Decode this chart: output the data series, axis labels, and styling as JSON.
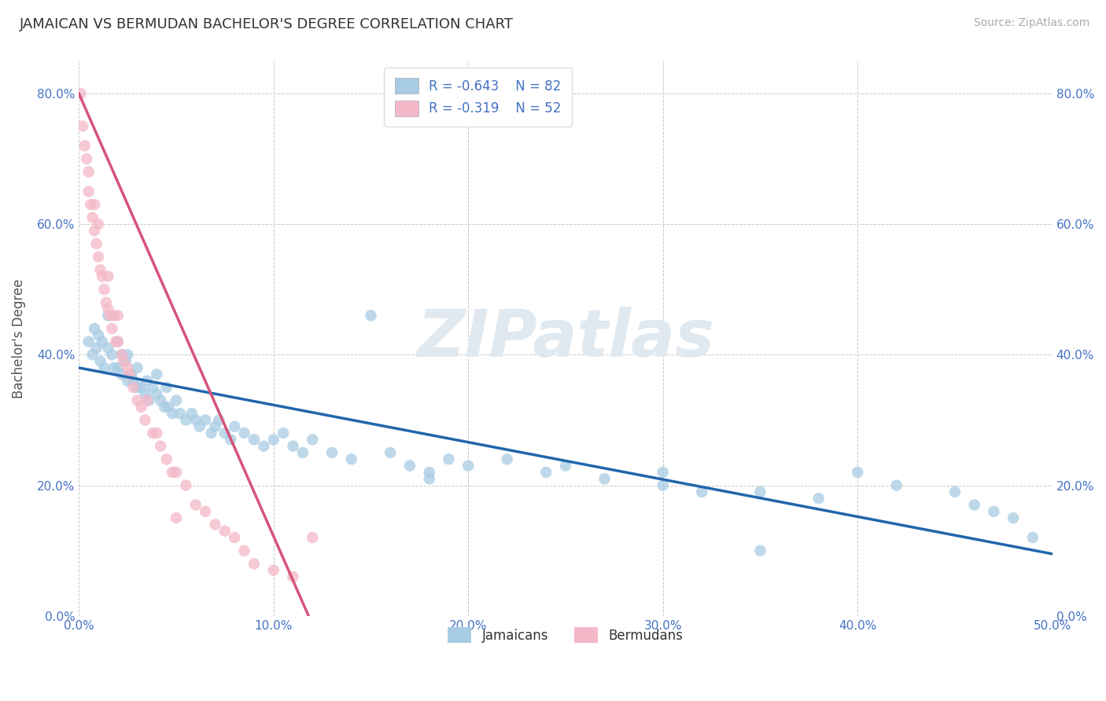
{
  "title": "JAMAICAN VS BERMUDAN BACHELOR'S DEGREE CORRELATION CHART",
  "source": "Source: ZipAtlas.com",
  "ylabel": "Bachelor's Degree",
  "xlim": [
    0.0,
    0.5
  ],
  "ylim": [
    0.0,
    0.85
  ],
  "xticks": [
    0.0,
    0.1,
    0.2,
    0.3,
    0.4,
    0.5
  ],
  "xtick_labels": [
    "0.0%",
    "10.0%",
    "20.0%",
    "30.0%",
    "40.0%",
    "50.0%"
  ],
  "yticks": [
    0.0,
    0.2,
    0.4,
    0.6,
    0.8
  ],
  "ytick_labels": [
    "0.0%",
    "20.0%",
    "40.0%",
    "60.0%",
    "80.0%"
  ],
  "legend_r_blue": "R = -0.643",
  "legend_n_blue": "N = 82",
  "legend_r_pink": "R = -0.319",
  "legend_n_pink": "N = 52",
  "blue_color": "#a8cce4",
  "blue_line_color": "#2166ac",
  "pink_color": "#f4b8c8",
  "pink_line_color": "#d6537a",
  "blue_scatter_x": [
    0.005,
    0.007,
    0.008,
    0.009,
    0.01,
    0.011,
    0.012,
    0.013,
    0.015,
    0.015,
    0.017,
    0.018,
    0.02,
    0.02,
    0.022,
    0.022,
    0.024,
    0.025,
    0.025,
    0.027,
    0.028,
    0.03,
    0.03,
    0.032,
    0.034,
    0.035,
    0.036,
    0.038,
    0.04,
    0.04,
    0.042,
    0.044,
    0.045,
    0.046,
    0.048,
    0.05,
    0.052,
    0.055,
    0.058,
    0.06,
    0.062,
    0.065,
    0.068,
    0.07,
    0.072,
    0.075,
    0.078,
    0.08,
    0.085,
    0.09,
    0.095,
    0.1,
    0.105,
    0.11,
    0.115,
    0.12,
    0.13,
    0.14,
    0.15,
    0.16,
    0.17,
    0.18,
    0.19,
    0.2,
    0.22,
    0.24,
    0.25,
    0.27,
    0.3,
    0.32,
    0.35,
    0.38,
    0.4,
    0.42,
    0.45,
    0.46,
    0.47,
    0.48,
    0.49,
    0.18,
    0.3,
    0.35
  ],
  "blue_scatter_y": [
    0.42,
    0.4,
    0.44,
    0.41,
    0.43,
    0.39,
    0.42,
    0.38,
    0.41,
    0.46,
    0.4,
    0.38,
    0.42,
    0.38,
    0.4,
    0.37,
    0.39,
    0.36,
    0.4,
    0.37,
    0.36,
    0.35,
    0.38,
    0.35,
    0.34,
    0.36,
    0.33,
    0.35,
    0.34,
    0.37,
    0.33,
    0.32,
    0.35,
    0.32,
    0.31,
    0.33,
    0.31,
    0.3,
    0.31,
    0.3,
    0.29,
    0.3,
    0.28,
    0.29,
    0.3,
    0.28,
    0.27,
    0.29,
    0.28,
    0.27,
    0.26,
    0.27,
    0.28,
    0.26,
    0.25,
    0.27,
    0.25,
    0.24,
    0.46,
    0.25,
    0.23,
    0.22,
    0.24,
    0.23,
    0.24,
    0.22,
    0.23,
    0.21,
    0.2,
    0.19,
    0.19,
    0.18,
    0.22,
    0.2,
    0.19,
    0.17,
    0.16,
    0.15,
    0.12,
    0.21,
    0.22,
    0.1
  ],
  "pink_scatter_x": [
    0.001,
    0.002,
    0.003,
    0.004,
    0.005,
    0.005,
    0.006,
    0.007,
    0.008,
    0.008,
    0.009,
    0.01,
    0.01,
    0.011,
    0.012,
    0.013,
    0.014,
    0.015,
    0.015,
    0.016,
    0.017,
    0.018,
    0.019,
    0.02,
    0.02,
    0.022,
    0.023,
    0.025,
    0.026,
    0.028,
    0.03,
    0.032,
    0.034,
    0.035,
    0.038,
    0.04,
    0.042,
    0.045,
    0.048,
    0.05,
    0.055,
    0.06,
    0.065,
    0.07,
    0.075,
    0.08,
    0.085,
    0.09,
    0.1,
    0.11,
    0.12,
    0.05
  ],
  "pink_scatter_y": [
    0.8,
    0.75,
    0.72,
    0.7,
    0.65,
    0.68,
    0.63,
    0.61,
    0.59,
    0.63,
    0.57,
    0.55,
    0.6,
    0.53,
    0.52,
    0.5,
    0.48,
    0.47,
    0.52,
    0.46,
    0.44,
    0.46,
    0.42,
    0.42,
    0.46,
    0.4,
    0.39,
    0.38,
    0.37,
    0.35,
    0.33,
    0.32,
    0.3,
    0.33,
    0.28,
    0.28,
    0.26,
    0.24,
    0.22,
    0.22,
    0.2,
    0.17,
    0.16,
    0.14,
    0.13,
    0.12,
    0.1,
    0.08,
    0.07,
    0.06,
    0.12,
    0.15
  ],
  "blue_line_x0": 0.0,
  "blue_line_x1": 0.5,
  "blue_line_y0": 0.38,
  "blue_line_y1": 0.095,
  "pink_line_x0": 0.0,
  "pink_line_x1": 0.118,
  "pink_line_y0": 0.8,
  "pink_line_y1": 0.0
}
